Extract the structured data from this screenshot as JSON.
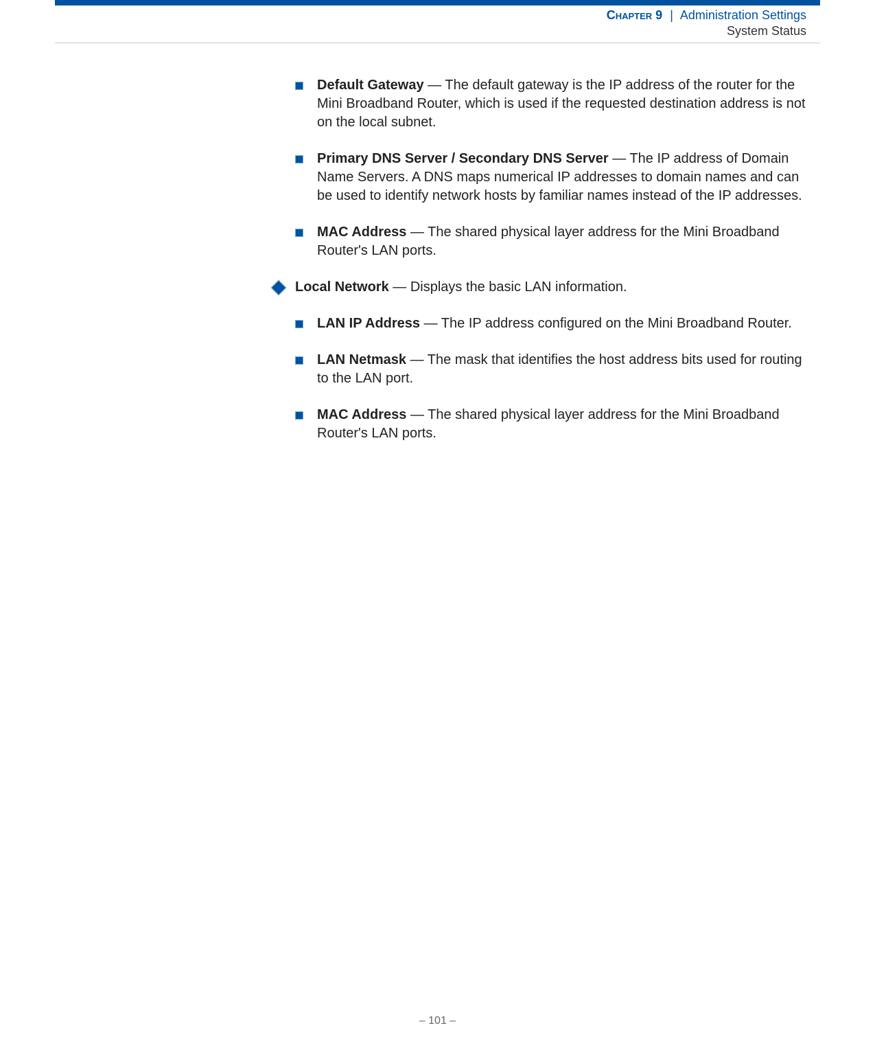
{
  "header": {
    "chapter_label": "Chapter 9",
    "separator": "|",
    "chapter_title": "Administration Settings",
    "subtitle": "System Status"
  },
  "colors": {
    "blue": "#0053a0",
    "text": "#222222",
    "rule": "#c9c9c9"
  },
  "items": [
    {
      "level": 2,
      "term": "Default Gateway",
      "desc": " — The default gateway is the IP address of the router for the Mini Broadband Router, which is used if the requested destination address is not on the local subnet."
    },
    {
      "level": 2,
      "term": "Primary DNS Server / Secondary DNS Server",
      "desc": " — The IP address of Domain Name Servers. A DNS maps numerical IP addresses to domain names and can be used to identify network hosts by familiar names instead of the IP addresses."
    },
    {
      "level": 2,
      "term": "MAC Address",
      "desc": " — The shared physical layer address for the Mini Broadband Router's LAN ports."
    },
    {
      "level": 1,
      "term": "Local Network",
      "desc": " — Displays the basic LAN information."
    },
    {
      "level": 2,
      "term": "LAN IP Address",
      "desc": " — The IP address configured on the Mini Broadband Router."
    },
    {
      "level": 2,
      "term": "LAN Netmask",
      "desc": " — The mask that identifies the host address bits used for routing to the LAN port."
    },
    {
      "level": 2,
      "term": "MAC Address",
      "desc": " — The shared physical layer address for the Mini Broadband Router's LAN ports."
    }
  ],
  "footer": {
    "page_number": "–  101  –"
  }
}
